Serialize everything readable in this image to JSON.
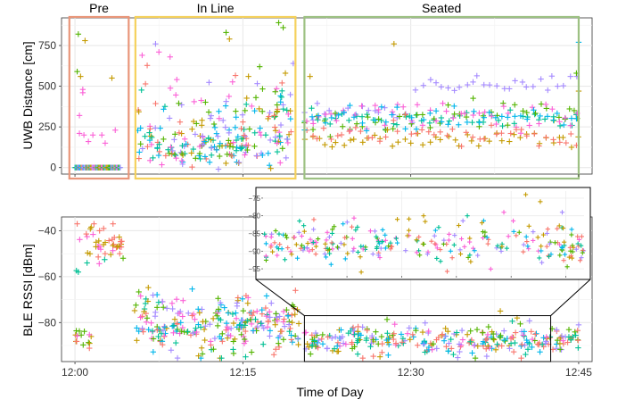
{
  "chart_data": [
    {
      "type": "scatter",
      "panel": "top",
      "ylabel": "UWB Distance [cm]",
      "ylim": [
        -40,
        920
      ],
      "yticks": [
        0,
        250,
        500,
        750
      ],
      "xlim_minutes": [
        -1.2,
        46.2
      ],
      "grid": true,
      "marker": "+",
      "regions": [
        {
          "label": "Pre",
          "start_min": -0.5,
          "end_min": 4.8,
          "color": "#E9967A"
        },
        {
          "label": "In Line",
          "start_min": 5.4,
          "end_min": 19.7,
          "color": "#F5D15C"
        },
        {
          "label": "Seated",
          "start_min": 20.5,
          "end_min": 45.0,
          "color": "#9DC183"
        }
      ]
    },
    {
      "type": "scatter",
      "panel": "bottom",
      "ylabel": "BLE RSSI [dBm]",
      "xlabel": "Time of Day",
      "ylim": [
        -97,
        -34
      ],
      "yticks": [
        -40,
        -60,
        -80
      ],
      "xticks": [
        "12:00",
        "12:15",
        "12:30",
        "12:45"
      ],
      "xtick_minutes": [
        0,
        15,
        30,
        45
      ],
      "grid": true,
      "marker": "+",
      "zoom_box": {
        "start_min": 20.5,
        "end_min": 42.5,
        "y_top": -77,
        "y_bottom": -97
      },
      "inset": {
        "ylim": [
          -97,
          -73
        ],
        "yticks": [
          -75,
          -80,
          -85,
          -90,
          -95
        ]
      }
    }
  ],
  "series_colors": [
    "#F8766D",
    "#C49A00",
    "#53B400",
    "#00C094",
    "#00B6EB",
    "#A58AFF",
    "#FB61D7"
  ]
}
